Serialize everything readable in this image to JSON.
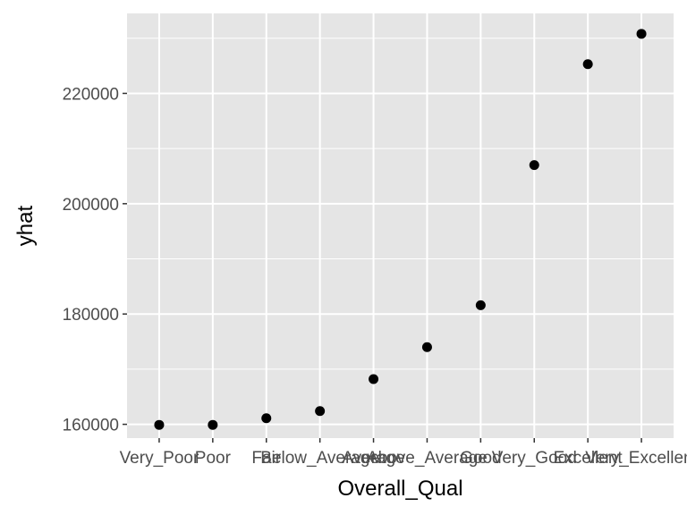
{
  "chart_data": {
    "type": "scatter",
    "xlabel": "Overall_Qual",
    "ylabel": "yhat",
    "categories": [
      "Very_Poor",
      "Poor",
      "Fair",
      "Below_Average",
      "Average",
      "Above_Average",
      "Good",
      "Very_Good",
      "Excellent",
      "Very_Excellent"
    ],
    "values": [
      159900,
      159900,
      161100,
      162400,
      168200,
      174000,
      181600,
      207000,
      225300,
      230800
    ],
    "ylim": [
      157500,
      234500
    ],
    "yticks": [
      160000,
      180000,
      200000,
      220000
    ],
    "ytick_labels": [
      "160000",
      "180000",
      "200000",
      "220000"
    ],
    "grid": true,
    "legend": "none",
    "colors": {
      "panel": "#e5e5e5",
      "grid": "#ffffff",
      "point": "#000000",
      "tick": "#333333"
    }
  }
}
